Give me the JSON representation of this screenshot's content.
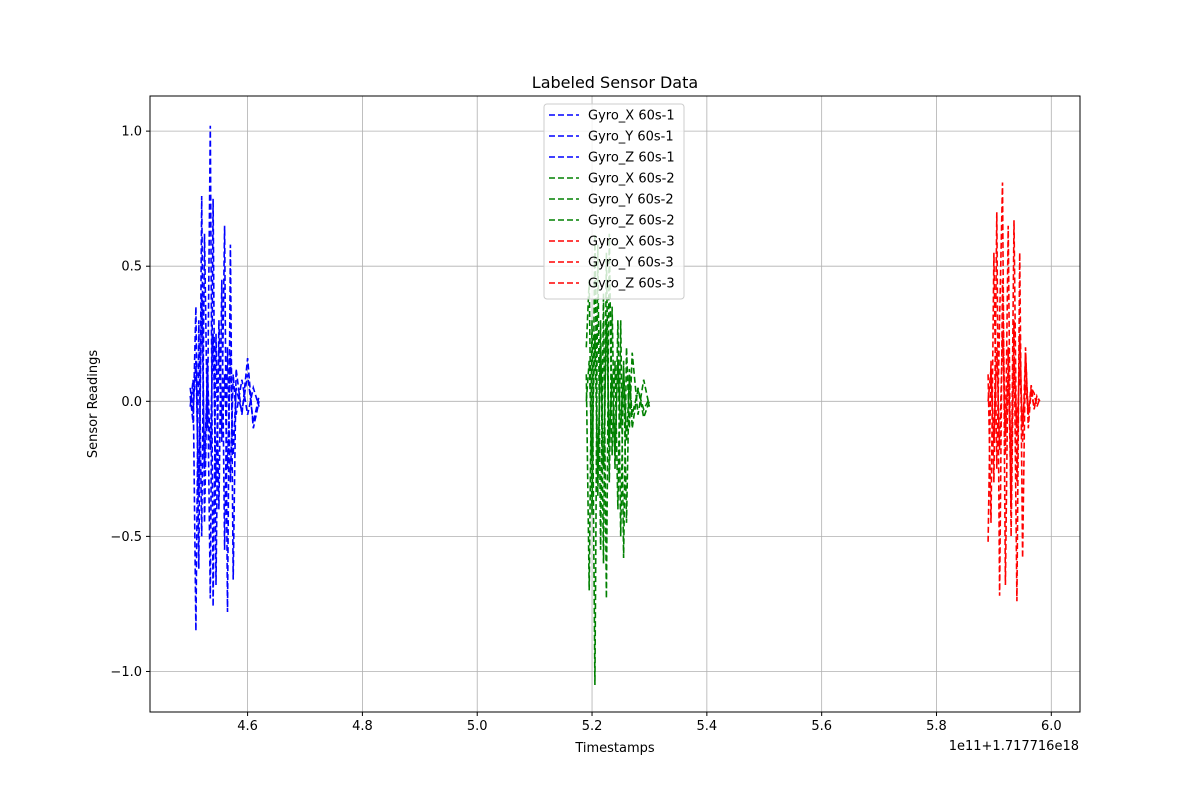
{
  "chart_data": {
    "type": "line",
    "title": "Labeled Sensor Data",
    "xlabel": "Timestamps",
    "ylabel": "Sensor Readings",
    "x_offset_label": "1e11+1.717716e18",
    "xlim": [
      4.43,
      6.05
    ],
    "ylim": [
      -1.15,
      1.13
    ],
    "x_ticks": [
      {
        "value": 4.6,
        "label": "4.6"
      },
      {
        "value": 4.8,
        "label": "4.8"
      },
      {
        "value": 5.0,
        "label": "5.0"
      },
      {
        "value": 5.2,
        "label": "5.2"
      },
      {
        "value": 5.4,
        "label": "5.4"
      },
      {
        "value": 5.6,
        "label": "5.6"
      },
      {
        "value": 5.8,
        "label": "5.8"
      },
      {
        "value": 6.0,
        "label": "6.0"
      }
    ],
    "y_ticks": [
      {
        "value": -1.0,
        "label": "−1.0"
      },
      {
        "value": -0.5,
        "label": "−0.5"
      },
      {
        "value": 0.0,
        "label": "0.0"
      },
      {
        "value": 0.5,
        "label": "0.5"
      },
      {
        "value": 1.0,
        "label": "1.0"
      }
    ],
    "grid": true,
    "legend_position": "top-center",
    "line_style": "dashed",
    "series": [
      {
        "name": "Gyro_X 60s-1",
        "color": "#0000ff",
        "x": [
          4.5,
          4.505,
          4.51,
          4.515,
          4.52,
          4.525,
          4.53,
          4.535,
          4.54,
          4.545,
          4.55,
          4.555,
          4.56,
          4.565,
          4.57,
          4.575,
          4.58,
          4.59,
          4.6,
          4.61,
          4.62
        ],
        "y": [
          0.02,
          -0.08,
          0.35,
          -0.62,
          0.76,
          -0.45,
          0.15,
          -0.73,
          0.75,
          -0.68,
          0.3,
          -0.1,
          0.65,
          -0.78,
          0.58,
          -0.66,
          0.12,
          -0.05,
          0.16,
          -0.1,
          0.0
        ]
      },
      {
        "name": "Gyro_Y 60s-1",
        "color": "#0000ff",
        "x": [
          4.5,
          4.505,
          4.51,
          4.515,
          4.52,
          4.525,
          4.53,
          4.535,
          4.54,
          4.545,
          4.55,
          4.555,
          4.56,
          4.565,
          4.57,
          4.575,
          4.58,
          4.59,
          4.6,
          4.61,
          4.62
        ],
        "y": [
          -0.02,
          0.08,
          -0.85,
          0.3,
          -0.5,
          0.62,
          -0.1,
          1.02,
          -0.76,
          0.25,
          -0.4,
          0.45,
          -0.55,
          0.2,
          -0.3,
          0.1,
          -0.05,
          0.08,
          -0.05,
          0.05,
          -0.02
        ]
      },
      {
        "name": "Gyro_Z 60s-1",
        "color": "#0000ff",
        "x": [
          4.5,
          4.505,
          4.51,
          4.515,
          4.52,
          4.525,
          4.53,
          4.535,
          4.54,
          4.545,
          4.55,
          4.555,
          4.56,
          4.565,
          4.57,
          4.575,
          4.58,
          4.59,
          4.6,
          4.61,
          4.62
        ],
        "y": [
          0.05,
          -0.04,
          0.15,
          -0.35,
          0.4,
          -0.25,
          0.12,
          -0.18,
          0.25,
          -0.3,
          0.2,
          -0.15,
          0.1,
          -0.25,
          0.18,
          -0.2,
          0.05,
          -0.04,
          0.1,
          -0.08,
          0.02
        ]
      },
      {
        "name": "Gyro_X 60s-2",
        "color": "#008000",
        "x": [
          5.19,
          5.195,
          5.2,
          5.205,
          5.21,
          5.215,
          5.22,
          5.225,
          5.23,
          5.235,
          5.24,
          5.245,
          5.25,
          5.255,
          5.26,
          5.265,
          5.27,
          5.28,
          5.29,
          5.3
        ],
        "y": [
          0.1,
          -0.7,
          0.3,
          -1.05,
          0.58,
          -0.55,
          0.4,
          -0.73,
          0.62,
          -0.2,
          0.15,
          -0.4,
          0.3,
          -0.58,
          0.2,
          -0.1,
          0.18,
          -0.05,
          0.08,
          -0.02
        ]
      },
      {
        "name": "Gyro_Y 60s-2",
        "color": "#008000",
        "x": [
          5.19,
          5.195,
          5.2,
          5.205,
          5.21,
          5.215,
          5.22,
          5.225,
          5.23,
          5.235,
          5.24,
          5.245,
          5.25,
          5.255,
          5.26,
          5.265,
          5.27,
          5.28,
          5.29,
          5.3
        ],
        "y": [
          0.2,
          0.45,
          -0.42,
          0.62,
          -0.35,
          0.3,
          -0.6,
          0.55,
          -0.3,
          0.35,
          -0.25,
          0.3,
          -0.5,
          0.15,
          -0.45,
          0.12,
          -0.1,
          0.05,
          -0.06,
          0.0
        ]
      },
      {
        "name": "Gyro_Z 60s-2",
        "color": "#008000",
        "x": [
          5.19,
          5.195,
          5.2,
          5.205,
          5.21,
          5.215,
          5.22,
          5.225,
          5.23,
          5.235,
          5.24,
          5.245,
          5.25,
          5.255,
          5.26,
          5.265,
          5.27,
          5.28,
          5.29,
          5.3
        ],
        "y": [
          0.0,
          0.15,
          -0.2,
          0.25,
          -0.3,
          0.2,
          -0.25,
          0.3,
          -0.15,
          0.1,
          -0.2,
          0.15,
          -0.1,
          0.12,
          -0.15,
          0.08,
          -0.05,
          0.04,
          -0.03,
          0.01
        ]
      },
      {
        "name": "Gyro_X 60s-3",
        "color": "#ff0000",
        "x": [
          5.89,
          5.895,
          5.9,
          5.905,
          5.91,
          5.915,
          5.92,
          5.925,
          5.93,
          5.935,
          5.94,
          5.945,
          5.95,
          5.955,
          5.96,
          5.965,
          5.97,
          5.975,
          5.98
        ],
        "y": [
          -0.52,
          0.15,
          -0.3,
          0.7,
          -0.72,
          0.45,
          -0.2,
          0.65,
          -0.5,
          0.3,
          -0.74,
          0.55,
          -0.58,
          0.2,
          -0.1,
          0.05,
          0.03,
          -0.02,
          0.01
        ]
      },
      {
        "name": "Gyro_Y 60s-3",
        "color": "#ff0000",
        "x": [
          5.89,
          5.895,
          5.9,
          5.905,
          5.91,
          5.915,
          5.92,
          5.925,
          5.93,
          5.935,
          5.94,
          5.945,
          5.95,
          5.955,
          5.96,
          5.965,
          5.97,
          5.975,
          5.98
        ],
        "y": [
          0.1,
          -0.45,
          0.55,
          -0.25,
          0.3,
          0.81,
          -0.68,
          0.2,
          -0.4,
          0.67,
          -0.3,
          0.25,
          -0.15,
          0.18,
          -0.05,
          0.06,
          -0.03,
          0.02,
          0.0
        ]
      },
      {
        "name": "Gyro_Z 60s-3",
        "color": "#ff0000",
        "x": [
          5.89,
          5.895,
          5.9,
          5.905,
          5.91,
          5.915,
          5.92,
          5.925,
          5.93,
          5.935,
          5.94,
          5.945,
          5.95,
          5.955,
          5.96,
          5.965,
          5.97,
          5.975,
          5.98
        ],
        "y": [
          0.0,
          0.12,
          -0.15,
          0.2,
          -0.18,
          0.25,
          -0.12,
          0.1,
          -0.2,
          0.15,
          -0.1,
          0.12,
          -0.08,
          0.06,
          -0.04,
          0.03,
          -0.02,
          0.01,
          0.0
        ]
      }
    ]
  }
}
